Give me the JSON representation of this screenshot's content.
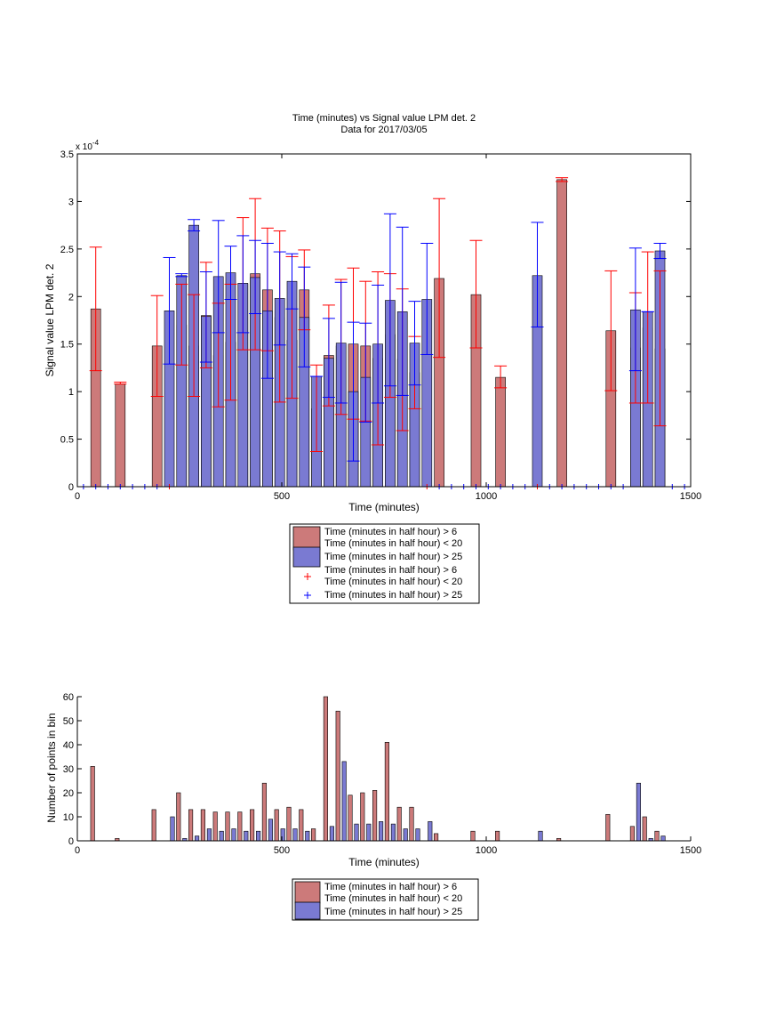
{
  "colors": {
    "red_bar": "#cc7a7a",
    "blue_bar": "#7a7ad2",
    "red_err": "#ff0000",
    "blue_err": "#0000ff"
  },
  "top": {
    "title_line1": "Time (minutes) vs Signal value LPM det. 2",
    "title_line2": "Data for 2017/03/05",
    "ylabel": "Signal value LPM det. 2",
    "xlabel": "Time (minutes)",
    "exponent_label": "x 10",
    "exponent_power": "-4",
    "xticks": [
      "0",
      "500",
      "1000",
      "1500"
    ],
    "yticks": [
      "0",
      "0.5",
      "1",
      "1.5",
      "2",
      "2.5",
      "3",
      "3.5"
    ],
    "legend": [
      {
        "kind": "patch",
        "color": "red",
        "lines": [
          "Time (minutes in half hour) > 6",
          "Time (minutes in half hour) < 20"
        ]
      },
      {
        "kind": "patch",
        "color": "blue",
        "lines": [
          "Time (minutes in half hour) > 25"
        ]
      },
      {
        "kind": "marker",
        "color": "red",
        "lines": [
          "Time (minutes in half hour) > 6",
          "Time (minutes in half hour) < 20"
        ]
      },
      {
        "kind": "marker",
        "color": "blue",
        "lines": [
          "Time (minutes in half hour) > 25"
        ]
      }
    ]
  },
  "bottom": {
    "ylabel": "Number of points in bin",
    "xlabel": "Time (minutes)",
    "xticks": [
      "0",
      "500",
      "1000",
      "1500"
    ],
    "yticks": [
      "0",
      "10",
      "20",
      "30",
      "40",
      "50",
      "60"
    ],
    "legend": [
      {
        "kind": "patch",
        "color": "red",
        "lines": [
          "Time (minutes in half hour) > 6",
          "Time (minutes in half hour) < 20"
        ]
      },
      {
        "kind": "patch",
        "color": "blue",
        "lines": [
          "Time (minutes in half hour) > 25"
        ]
      }
    ]
  },
  "chart_data": [
    {
      "type": "bar",
      "title": "Time (minutes) vs Signal value LPM det. 2",
      "subtitle": "Data for 2017/03/05",
      "xlabel": "Time (minutes)",
      "ylabel": "Signal value LPM det. 2",
      "y_scale_note": "x 10^-4",
      "xlim": [
        0,
        1500
      ],
      "ylim": [
        0,
        3.5
      ],
      "grid": false,
      "legend_position": "below",
      "series": [
        {
          "name": "Time (minutes in half hour) > 6 Time (minutes in half hour) < 20",
          "color": "red",
          "points": [
            {
              "x": 45,
              "y": 1.87,
              "lo": 1.22,
              "hi": 2.52
            },
            {
              "x": 105,
              "y": 1.08,
              "lo": 1.08,
              "hi": 1.1
            },
            {
              "x": 195,
              "y": 1.48,
              "lo": 0.95,
              "hi": 2.01
            },
            {
              "x": 255,
              "y": 1.7,
              "lo": 1.28,
              "hi": 2.13
            },
            {
              "x": 285,
              "y": 1.48,
              "lo": 0.95,
              "hi": 2.02
            },
            {
              "x": 315,
              "y": 1.8,
              "lo": 1.25,
              "hi": 2.36
            },
            {
              "x": 345,
              "y": 1.38,
              "lo": 0.84,
              "hi": 1.93
            },
            {
              "x": 375,
              "y": 1.52,
              "lo": 0.91,
              "hi": 2.13
            },
            {
              "x": 405,
              "y": 2.13,
              "lo": 1.44,
              "hi": 2.83
            },
            {
              "x": 435,
              "y": 2.24,
              "lo": 1.44,
              "hi": 3.03
            },
            {
              "x": 465,
              "y": 2.07,
              "lo": 1.43,
              "hi": 2.72
            },
            {
              "x": 495,
              "y": 1.78,
              "lo": 0.89,
              "hi": 2.69
            },
            {
              "x": 525,
              "y": 1.54,
              "lo": 0.93,
              "hi": 2.42
            },
            {
              "x": 555,
              "y": 2.07,
              "lo": 1.65,
              "hi": 2.49
            },
            {
              "x": 585,
              "y": 0.82,
              "lo": 0.37,
              "hi": 1.28
            },
            {
              "x": 615,
              "y": 1.38,
              "lo": 0.85,
              "hi": 1.91
            },
            {
              "x": 645,
              "y": 1.48,
              "lo": 0.76,
              "hi": 2.18
            },
            {
              "x": 675,
              "y": 1.5,
              "lo": 0.71,
              "hi": 2.3
            },
            {
              "x": 705,
              "y": 1.48,
              "lo": 0.69,
              "hi": 2.16
            },
            {
              "x": 735,
              "y": 1.35,
              "lo": 0.44,
              "hi": 2.26
            },
            {
              "x": 765,
              "y": 1.6,
              "lo": 0.94,
              "hi": 2.24
            },
            {
              "x": 795,
              "y": 1.34,
              "lo": 0.59,
              "hi": 2.08
            },
            {
              "x": 825,
              "y": 1.2,
              "lo": 0.82,
              "hi": 1.58
            },
            {
              "x": 885,
              "y": 2.19,
              "lo": 1.36,
              "hi": 3.03
            },
            {
              "x": 975,
              "y": 2.02,
              "lo": 1.46,
              "hi": 2.59
            },
            {
              "x": 1035,
              "y": 1.15,
              "lo": 1.04,
              "hi": 1.27
            },
            {
              "x": 1185,
              "y": 3.23,
              "lo": 3.21,
              "hi": 3.25
            },
            {
              "x": 1305,
              "y": 1.64,
              "lo": 1.01,
              "hi": 2.27
            },
            {
              "x": 1365,
              "y": 1.46,
              "lo": 0.88,
              "hi": 2.04
            },
            {
              "x": 1395,
              "y": 1.67,
              "lo": 0.88,
              "hi": 2.47
            },
            {
              "x": 1425,
              "y": 1.45,
              "lo": 0.64,
              "hi": 2.27
            }
          ]
        },
        {
          "name": "Time (minutes in half hour) > 25",
          "color": "blue",
          "points": [
            {
              "x": 225,
              "y": 1.85,
              "lo": 1.29,
              "hi": 2.41
            },
            {
              "x": 255,
              "y": 2.22,
              "lo": 2.21,
              "hi": 2.24
            },
            {
              "x": 285,
              "y": 2.75,
              "lo": 2.69,
              "hi": 2.81
            },
            {
              "x": 315,
              "y": 1.79,
              "lo": 1.31,
              "hi": 2.26
            },
            {
              "x": 345,
              "y": 2.21,
              "lo": 1.62,
              "hi": 2.8
            },
            {
              "x": 375,
              "y": 2.25,
              "lo": 1.97,
              "hi": 2.53
            },
            {
              "x": 405,
              "y": 2.14,
              "lo": 1.62,
              "hi": 2.64
            },
            {
              "x": 435,
              "y": 2.2,
              "lo": 1.82,
              "hi": 2.59
            },
            {
              "x": 465,
              "y": 1.85,
              "lo": 1.14,
              "hi": 2.56
            },
            {
              "x": 495,
              "y": 1.98,
              "lo": 1.49,
              "hi": 2.47
            },
            {
              "x": 525,
              "y": 2.16,
              "lo": 1.87,
              "hi": 2.45
            },
            {
              "x": 555,
              "y": 1.78,
              "lo": 1.26,
              "hi": 2.31
            },
            {
              "x": 585,
              "y": 1.16,
              "lo": 1.16,
              "hi": 1.16
            },
            {
              "x": 615,
              "y": 1.35,
              "lo": 0.94,
              "hi": 1.77
            },
            {
              "x": 645,
              "y": 1.51,
              "lo": 0.88,
              "hi": 2.15
            },
            {
              "x": 675,
              "y": 1.0,
              "lo": 0.27,
              "hi": 1.73
            },
            {
              "x": 705,
              "y": 1.15,
              "lo": 0.68,
              "hi": 1.72
            },
            {
              "x": 735,
              "y": 1.5,
              "lo": 0.88,
              "hi": 2.12
            },
            {
              "x": 765,
              "y": 1.96,
              "lo": 1.06,
              "hi": 2.87
            },
            {
              "x": 795,
              "y": 1.84,
              "lo": 0.96,
              "hi": 2.73
            },
            {
              "x": 825,
              "y": 1.51,
              "lo": 1.07,
              "hi": 1.95
            },
            {
              "x": 855,
              "y": 1.97,
              "lo": 1.39,
              "hi": 2.56
            },
            {
              "x": 1125,
              "y": 2.22,
              "lo": 1.68,
              "hi": 2.78
            },
            {
              "x": 1365,
              "y": 1.86,
              "lo": 1.22,
              "hi": 2.51
            },
            {
              "x": 1395,
              "y": 1.84,
              "lo": 1.84,
              "hi": 1.84
            },
            {
              "x": 1425,
              "y": 2.48,
              "lo": 2.4,
              "hi": 2.56
            }
          ]
        }
      ]
    },
    {
      "type": "bar",
      "xlabel": "Time (minutes)",
      "ylabel": "Number of points in bin",
      "xlim": [
        0,
        1500
      ],
      "ylim": [
        0,
        60
      ],
      "grid": false,
      "legend_position": "below",
      "series": [
        {
          "name": "Time (minutes in half hour) > 6 Time (minutes in half hour) < 20",
          "color": "red",
          "points": [
            {
              "x": 45,
              "y": 31
            },
            {
              "x": 105,
              "y": 1
            },
            {
              "x": 195,
              "y": 13
            },
            {
              "x": 255,
              "y": 20
            },
            {
              "x": 285,
              "y": 13
            },
            {
              "x": 315,
              "y": 13
            },
            {
              "x": 345,
              "y": 12
            },
            {
              "x": 375,
              "y": 12
            },
            {
              "x": 405,
              "y": 12
            },
            {
              "x": 435,
              "y": 13
            },
            {
              "x": 465,
              "y": 24
            },
            {
              "x": 495,
              "y": 13
            },
            {
              "x": 525,
              "y": 14
            },
            {
              "x": 555,
              "y": 13
            },
            {
              "x": 585,
              "y": 5
            },
            {
              "x": 615,
              "y": 60
            },
            {
              "x": 645,
              "y": 54
            },
            {
              "x": 675,
              "y": 19
            },
            {
              "x": 705,
              "y": 20
            },
            {
              "x": 735,
              "y": 21
            },
            {
              "x": 765,
              "y": 41
            },
            {
              "x": 795,
              "y": 14
            },
            {
              "x": 825,
              "y": 14
            },
            {
              "x": 885,
              "y": 3
            },
            {
              "x": 975,
              "y": 4
            },
            {
              "x": 1035,
              "y": 4
            },
            {
              "x": 1185,
              "y": 1
            },
            {
              "x": 1305,
              "y": 11
            },
            {
              "x": 1365,
              "y": 6
            },
            {
              "x": 1395,
              "y": 10
            },
            {
              "x": 1425,
              "y": 4
            }
          ]
        },
        {
          "name": "Time (minutes in half hour) > 25",
          "color": "blue",
          "points": [
            {
              "x": 225,
              "y": 10
            },
            {
              "x": 255,
              "y": 1
            },
            {
              "x": 285,
              "y": 2
            },
            {
              "x": 315,
              "y": 5
            },
            {
              "x": 345,
              "y": 4
            },
            {
              "x": 375,
              "y": 5
            },
            {
              "x": 405,
              "y": 4
            },
            {
              "x": 435,
              "y": 4
            },
            {
              "x": 465,
              "y": 9
            },
            {
              "x": 495,
              "y": 5
            },
            {
              "x": 525,
              "y": 5
            },
            {
              "x": 555,
              "y": 4
            },
            {
              "x": 615,
              "y": 6
            },
            {
              "x": 645,
              "y": 33
            },
            {
              "x": 675,
              "y": 7
            },
            {
              "x": 705,
              "y": 7
            },
            {
              "x": 735,
              "y": 8
            },
            {
              "x": 765,
              "y": 7
            },
            {
              "x": 795,
              "y": 5
            },
            {
              "x": 825,
              "y": 5
            },
            {
              "x": 855,
              "y": 8
            },
            {
              "x": 1125,
              "y": 4
            },
            {
              "x": 1365,
              "y": 24
            },
            {
              "x": 1395,
              "y": 1
            },
            {
              "x": 1425,
              "y": 2
            }
          ]
        }
      ]
    }
  ]
}
